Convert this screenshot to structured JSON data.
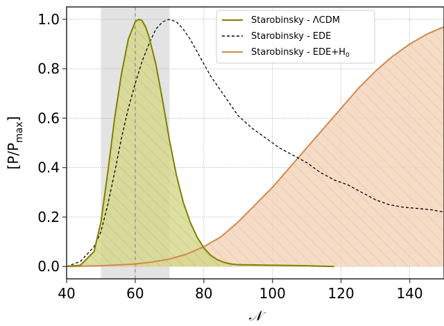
{
  "chart_data": {
    "type": "line",
    "xlabel": "𝒩",
    "ylabel": "[P/P",
    "ylabel_sub": "max",
    "ylabel_end": "]",
    "xlim": [
      40,
      150
    ],
    "ylim": [
      -0.05,
      1.05
    ],
    "xticks": [
      40,
      60,
      80,
      100,
      120,
      140
    ],
    "yticks": [
      0.0,
      0.2,
      0.4,
      0.6,
      0.8,
      1.0
    ],
    "grid": true,
    "shaded_band": {
      "x": [
        50,
        70
      ],
      "color": "#e3e3e3"
    },
    "vline": {
      "x": 60,
      "style": "dashed",
      "color": "#888888"
    },
    "legend": {
      "placement": "top-right",
      "entries": [
        {
          "label": "Starobinsky - ΛCDM",
          "series": 0
        },
        {
          "label": "Starobinsky - EDE",
          "series": 1
        },
        {
          "label": "Starobinsky - EDE+H",
          "sub": "0",
          "series": 2
        }
      ]
    },
    "series": [
      {
        "name": "Starobinsky - ΛCDM",
        "color": "#808000",
        "fill": "#d4d78a",
        "hatch": true,
        "style": "solid",
        "x": [
          40,
          44,
          48,
          50,
          52,
          54,
          56,
          58,
          60,
          61,
          62,
          63,
          64,
          66,
          68,
          70,
          72,
          74,
          76,
          78,
          80,
          82,
          84,
          86,
          88,
          90,
          95,
          100,
          105,
          110,
          115,
          118
        ],
        "y": [
          0.0,
          0.005,
          0.06,
          0.18,
          0.38,
          0.6,
          0.78,
          0.92,
          0.99,
          1.0,
          0.995,
          0.97,
          0.93,
          0.82,
          0.67,
          0.51,
          0.37,
          0.26,
          0.18,
          0.12,
          0.075,
          0.045,
          0.027,
          0.016,
          0.01,
          0.007,
          0.006,
          0.005,
          0.004,
          0.003,
          0.001,
          0.0
        ]
      },
      {
        "name": "Starobinsky - EDE",
        "color": "#000000",
        "style": "dashed",
        "x": [
          40,
          44,
          48,
          50,
          52,
          54,
          56,
          58,
          60,
          62,
          64,
          66,
          68,
          70,
          72,
          74,
          76,
          78,
          80,
          82,
          84,
          86,
          88,
          90,
          94,
          98,
          102,
          106,
          110,
          114,
          118,
          122,
          126,
          130,
          134,
          138,
          142,
          146,
          150
        ],
        "y": [
          0.0,
          0.02,
          0.08,
          0.14,
          0.25,
          0.38,
          0.52,
          0.64,
          0.74,
          0.83,
          0.9,
          0.96,
          0.99,
          1.0,
          0.99,
          0.96,
          0.92,
          0.87,
          0.82,
          0.77,
          0.73,
          0.69,
          0.65,
          0.61,
          0.56,
          0.52,
          0.48,
          0.45,
          0.42,
          0.38,
          0.35,
          0.33,
          0.3,
          0.27,
          0.25,
          0.24,
          0.235,
          0.23,
          0.22
        ]
      },
      {
        "name": "Starobinsky - EDE+H0",
        "color": "#d2874a",
        "fill": "#f3d6bd",
        "hatch": true,
        "style": "solid",
        "x": [
          40,
          50,
          60,
          65,
          70,
          75,
          80,
          85,
          90,
          95,
          100,
          105,
          110,
          115,
          120,
          125,
          130,
          135,
          140,
          145,
          150
        ],
        "y": [
          0.0,
          0.003,
          0.01,
          0.018,
          0.03,
          0.05,
          0.08,
          0.12,
          0.18,
          0.25,
          0.32,
          0.4,
          0.48,
          0.56,
          0.64,
          0.72,
          0.79,
          0.85,
          0.9,
          0.94,
          0.97
        ]
      }
    ]
  }
}
